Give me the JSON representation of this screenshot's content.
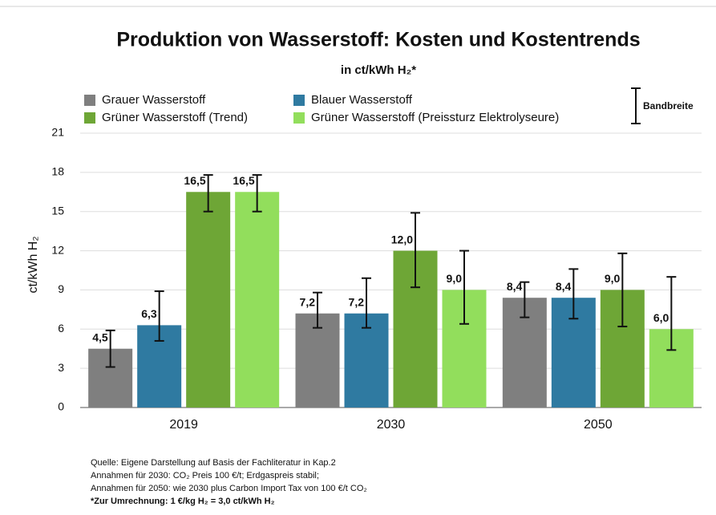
{
  "chart_data": {
    "type": "bar",
    "title": "Produktion von Wasserstoff: Kosten und Kostentrends",
    "subtitle": "in ct/kWh H₂*",
    "y_label": "ct/kWh H₂",
    "error_legend": "Bandbreite",
    "categories": [
      "2019",
      "2030",
      "2050"
    ],
    "ylim": [
      0,
      21
    ],
    "yticks": [
      0,
      3,
      6,
      9,
      12,
      15,
      18,
      21
    ],
    "grid": true,
    "series": [
      {
        "name": "Grauer Wasserstoff",
        "color": "#7f7f7f",
        "values": [
          4.5,
          7.2,
          8.4
        ],
        "value_labels": [
          "4,5",
          "7,2",
          "8,4"
        ],
        "low": [
          3.1,
          6.1,
          6.9
        ],
        "high": [
          5.9,
          8.8,
          9.6
        ]
      },
      {
        "name": "Blauer Wasserstoff",
        "color": "#2f7aa1",
        "values": [
          6.3,
          7.2,
          8.4
        ],
        "value_labels": [
          "6,3",
          "7,2",
          "8,4"
        ],
        "low": [
          5.1,
          6.1,
          6.8
        ],
        "high": [
          8.9,
          9.9,
          10.6
        ]
      },
      {
        "name": "Grüner Wasserstoff (Trend)",
        "color": "#6ea636",
        "values": [
          16.5,
          12.0,
          9.0
        ],
        "value_labels": [
          "16,5",
          "12,0",
          "9,0"
        ],
        "low": [
          15.0,
          9.2,
          6.2
        ],
        "high": [
          17.8,
          14.9,
          11.8
        ]
      },
      {
        "name": "Grüner Wasserstoff (Preissturz Elektrolyseure)",
        "color": "#92de5c",
        "values": [
          16.5,
          9.0,
          6.0
        ],
        "value_labels": [
          "16,5",
          "9,0",
          "6,0"
        ],
        "low": [
          15.0,
          6.4,
          4.4
        ],
        "high": [
          17.8,
          12.0,
          10.0
        ]
      }
    ],
    "notes": [
      "Quelle: Eigene Darstellung auf Basis der Fachliteratur in Kap.2",
      "Annahmen für 2030: CO₂ Preis 100 €/t; Erdgaspreis stabil;",
      "Annahmen für 2050: wie 2030 plus Carbon Import Tax von 100 €/t CO₂",
      "*Zur Umrechnung: 1 €/kg H₂ = 3,0 ct/kWh H₂"
    ]
  }
}
